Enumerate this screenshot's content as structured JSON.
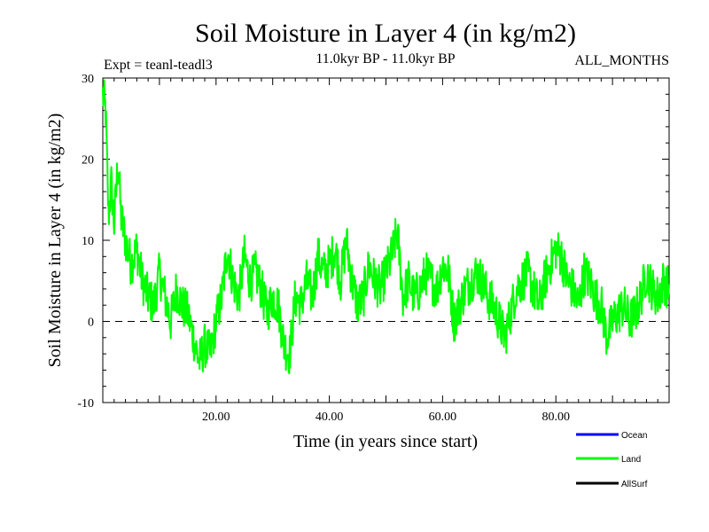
{
  "colors": {
    "land": "#00ff00",
    "ocean": "#0000ff",
    "allsurf": "#000000",
    "axis": "#000000"
  },
  "chart_data": {
    "type": "line",
    "title": "Soil Moisture in Layer 4 (in kg/m2)",
    "subtitle": "11.0kyr BP - 11.0kyr BP",
    "experiment_label": "Expt = teanl-teadl3",
    "months_label": "ALL_MONTHS",
    "xlabel": "Time (in years since start)",
    "ylabel": "Soil Moisture in Layer 4 (in kg/m2)",
    "xlim": [
      0,
      100
    ],
    "ylim": [
      -10,
      30
    ],
    "x_ticks": [
      20,
      40,
      60,
      80
    ],
    "x_tick_labels": [
      "20.00",
      "40.00",
      "60.00",
      "80.00"
    ],
    "y_ticks": [
      -10,
      0,
      10,
      20,
      30
    ],
    "y_tick_labels": [
      "-10",
      "0",
      "10",
      "20",
      "30"
    ],
    "reference_line_y": 0,
    "legend": [
      "Ocean",
      "Land",
      "AllSurf"
    ],
    "series": [
      {
        "name": "Land",
        "x_start": 0,
        "x_end": 100,
        "key_points": [
          [
            0,
            28
          ],
          [
            0.5,
            26
          ],
          [
            1,
            13
          ],
          [
            1.5,
            17
          ],
          [
            2,
            12
          ],
          [
            2.7,
            20
          ],
          [
            3.2,
            13
          ],
          [
            4,
            10
          ],
          [
            5,
            7
          ],
          [
            6,
            9
          ],
          [
            7,
            5
          ],
          [
            8,
            3
          ],
          [
            9,
            2
          ],
          [
            10,
            6
          ],
          [
            11,
            3
          ],
          [
            12,
            0
          ],
          [
            13,
            4
          ],
          [
            14,
            2
          ],
          [
            15,
            1
          ],
          [
            16,
            -2
          ],
          [
            17,
            -5
          ],
          [
            18,
            -3
          ],
          [
            19,
            -4
          ],
          [
            20,
            0
          ],
          [
            21,
            3
          ],
          [
            22,
            9
          ],
          [
            23,
            5
          ],
          [
            24,
            3
          ],
          [
            25,
            8
          ],
          [
            26,
            5
          ],
          [
            27,
            6
          ],
          [
            28,
            4
          ],
          [
            29,
            1
          ],
          [
            30,
            3
          ],
          [
            31,
            2
          ],
          [
            32,
            -3
          ],
          [
            33,
            -4
          ],
          [
            34,
            3
          ],
          [
            35,
            2
          ],
          [
            36,
            5
          ],
          [
            37,
            3
          ],
          [
            38,
            8
          ],
          [
            39,
            6
          ],
          [
            40,
            7
          ],
          [
            41,
            9
          ],
          [
            42,
            5
          ],
          [
            43,
            10
          ],
          [
            44,
            5
          ],
          [
            45,
            2
          ],
          [
            46,
            3
          ],
          [
            47,
            7
          ],
          [
            48,
            5
          ],
          [
            49,
            4
          ],
          [
            50,
            6
          ],
          [
            51,
            8
          ],
          [
            52,
            11
          ],
          [
            53,
            3
          ],
          [
            54,
            5
          ],
          [
            55,
            3
          ],
          [
            56,
            4
          ],
          [
            57,
            6
          ],
          [
            58,
            5
          ],
          [
            59,
            4
          ],
          [
            60,
            7
          ],
          [
            61,
            6
          ],
          [
            62,
            0
          ],
          [
            63,
            2
          ],
          [
            64,
            4
          ],
          [
            65,
            5
          ],
          [
            66,
            6
          ],
          [
            67,
            5
          ],
          [
            68,
            3
          ],
          [
            69,
            2
          ],
          [
            70,
            0
          ],
          [
            71,
            -2
          ],
          [
            72,
            1
          ],
          [
            73,
            4
          ],
          [
            74,
            5
          ],
          [
            75,
            6
          ],
          [
            76,
            4
          ],
          [
            77,
            2
          ],
          [
            78,
            5
          ],
          [
            79,
            7
          ],
          [
            80,
            9
          ],
          [
            81,
            8
          ],
          [
            82,
            5
          ],
          [
            83,
            4
          ],
          [
            84,
            2
          ],
          [
            85,
            6
          ],
          [
            86,
            5
          ],
          [
            87,
            3
          ],
          [
            88,
            2
          ],
          [
            89,
            -2
          ],
          [
            90,
            0
          ],
          [
            91,
            1
          ],
          [
            92,
            2
          ],
          [
            93,
            0
          ],
          [
            94,
            1
          ],
          [
            95,
            3
          ],
          [
            96,
            6
          ],
          [
            97,
            4
          ],
          [
            98,
            3
          ],
          [
            99,
            5
          ],
          [
            100,
            4
          ]
        ]
      }
    ]
  }
}
